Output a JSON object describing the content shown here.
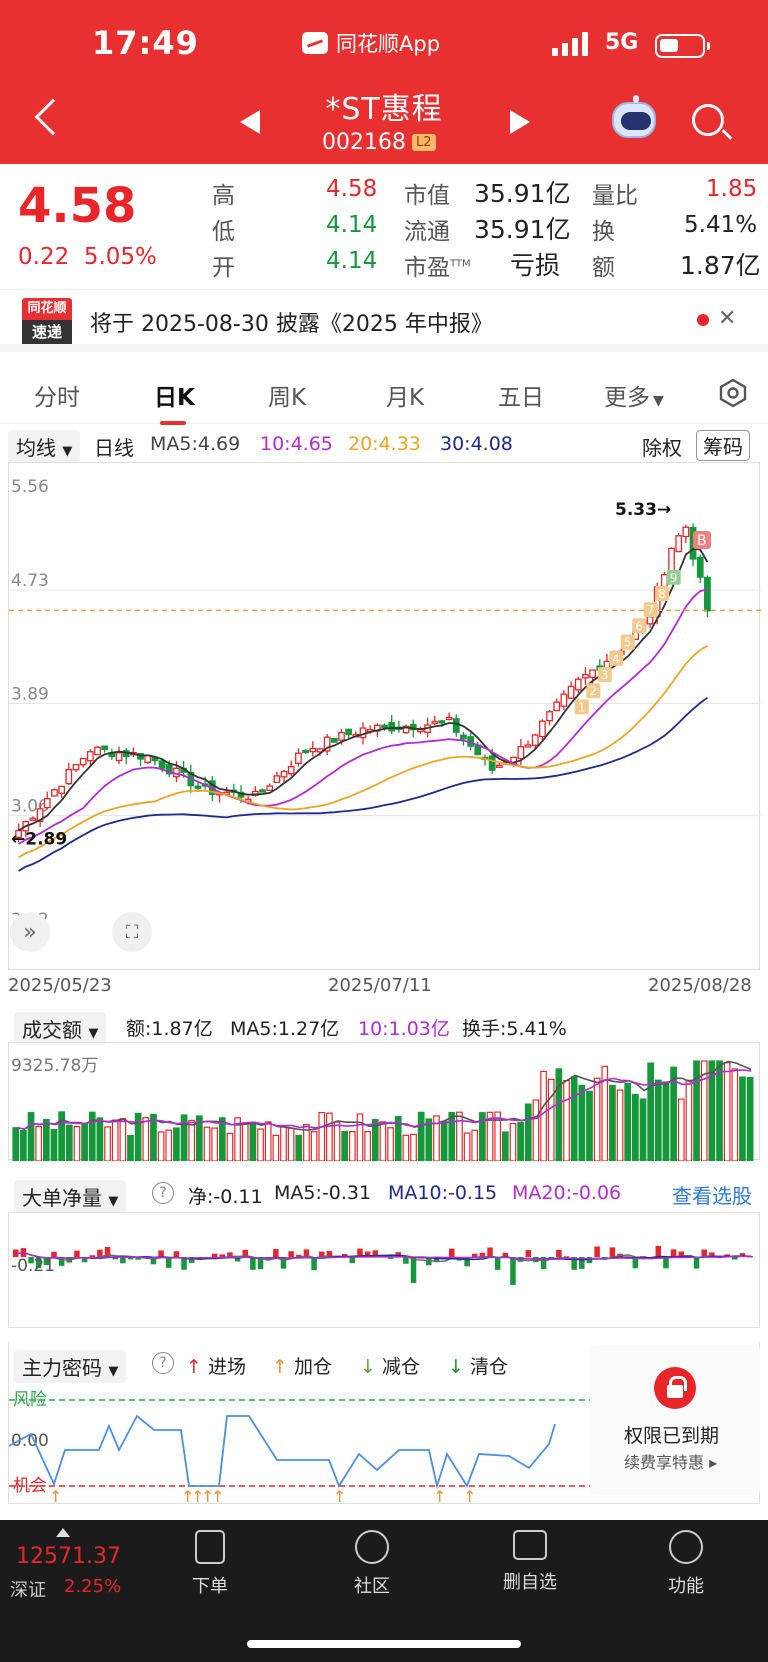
{
  "status": {
    "time": "17:49",
    "app": "同花顺App",
    "network": "5G"
  },
  "stock": {
    "name": "*ST惠程",
    "code": "002168",
    "badge": "L2"
  },
  "quote": {
    "price": "4.58",
    "change": "0.22",
    "pct": "5.05%",
    "rows": [
      [
        "高",
        "4.58",
        "市值",
        "35.91亿",
        "量比",
        "1.85"
      ],
      [
        "低",
        "4.14",
        "流通",
        "35.91亿",
        "换",
        "5.41%"
      ],
      [
        "开",
        "4.14",
        "市盈",
        "亏损",
        "额",
        "1.87亿"
      ]
    ],
    "ttm": "TTM"
  },
  "news": {
    "logo_top": "同花顺",
    "logo_bottom": "速递",
    "text": "将于 2025-08-30 披露《2025 年中报》"
  },
  "tabs": [
    "分时",
    "日K",
    "周K",
    "月K",
    "五日",
    "更多"
  ],
  "ma": {
    "type": "均线",
    "period": "日线",
    "ma5": "MA5:4.69",
    "ma10": "10:4.65",
    "ma20": "20:4.33",
    "ma30": "30:4.08",
    "fuquan": "除权",
    "chouma": "筹码"
  },
  "kline": {
    "y_labels": [
      "5.56",
      "4.73",
      "3.89",
      "3.06",
      "2.22"
    ],
    "dates": [
      "2025/05/23",
      "2025/07/11",
      "2025/08/28"
    ],
    "high_mark": "5.33→",
    "low_mark": "←2.89",
    "signal": "B",
    "seq_labels": [
      "1",
      "2",
      "3",
      "4",
      "5",
      "6",
      "7",
      "8",
      "9"
    ]
  },
  "volume": {
    "name": "成交额",
    "amount": "额:1.87亿",
    "ma5": "MA5:1.27亿",
    "ma10": "10:1.03亿",
    "turnover": "换手:5.41%",
    "y_label": "9325.78万"
  },
  "netflow": {
    "name": "大单净量",
    "net": "净:-0.11",
    "ma5": "MA5:-0.31",
    "ma10": "MA10:-0.15",
    "ma20": "MA20:-0.06",
    "link": "查看选股",
    "y_label": "-0.21"
  },
  "mainforce": {
    "name": "主力密码",
    "legend": [
      "进场",
      "加仓",
      "减仓",
      "清仓"
    ],
    "risk": "风险",
    "zero": "0.00",
    "chance": "机会",
    "perm_title": "权限已到期",
    "perm_sub": "续费享特惠 ▸"
  },
  "bottom": {
    "index_value": "12571.37",
    "index_name": "深证",
    "index_pct": "2.25%",
    "items": [
      "下单",
      "社区",
      "删自选",
      "功能"
    ]
  },
  "colors": {
    "brand": "#e93030",
    "up": "#e8262a",
    "down": "#15983a",
    "ma5": "#333333",
    "ma10": "#b32ad6",
    "ma20": "#f0a422",
    "ma30": "#1e2a8c"
  }
}
